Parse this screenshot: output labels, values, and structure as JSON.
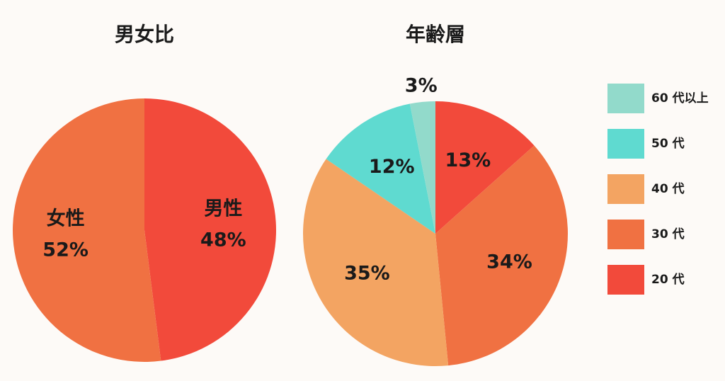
{
  "chart_data": [
    {
      "type": "pie",
      "title": "男女比",
      "categories": [
        "男性",
        "女性"
      ],
      "values": [
        48,
        52
      ],
      "value_labels": [
        "48%",
        "52%"
      ],
      "colors": [
        "#f24a3b",
        "#f07142"
      ]
    },
    {
      "type": "pie",
      "title": "年齢層",
      "categories": [
        "20 代",
        "30 代",
        "40 代",
        "50 代",
        "60 代以上"
      ],
      "values": [
        13,
        34,
        35,
        12,
        3
      ],
      "value_labels": [
        "13%",
        "34%",
        "35%",
        "12%",
        "3%"
      ],
      "colors": [
        "#f24a3b",
        "#f07142",
        "#f3a462",
        "#5fdad0",
        "#92dacb"
      ],
      "legend": "right"
    }
  ]
}
